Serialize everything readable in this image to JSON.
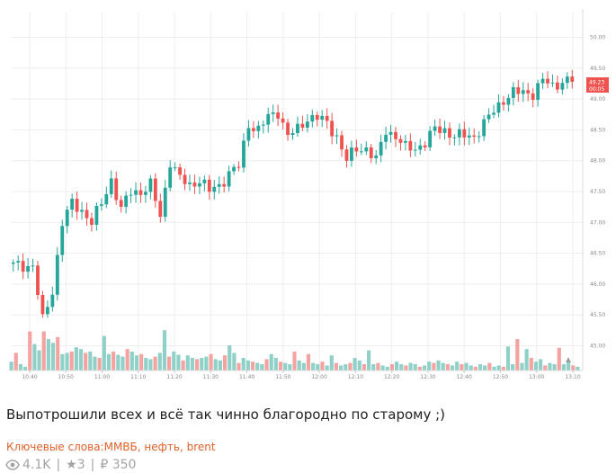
{
  "post": {
    "text": "Выпотрошили всех и всё так чинно благородно по старому ;)",
    "keywords_label": "Ключевые слова:",
    "keywords": "ММВБ, нефть, brent",
    "views": "4.1K",
    "rating": "★3",
    "price": "₽ 350",
    "separator": "|"
  },
  "colors": {
    "up": "#26a69a",
    "down": "#ef5350",
    "up_volume": "#8fd1c8",
    "down_volume": "#f4a3a1",
    "grid": "#eeeeee"
  },
  "chart_data": {
    "type": "candlestick",
    "x_ticks": [
      "10:40",
      "10:50",
      "11:00",
      "11:10",
      "11:20",
      "11:30",
      "11:40",
      "11:50",
      "12:00",
      "12:10",
      "12:20",
      "12:30",
      "12:40",
      "12:50",
      "13:00",
      "13:10"
    ],
    "y_ticks": [
      "50.00",
      "49.50",
      "49.00",
      "48.50",
      "48.00",
      "47.50",
      "47.00",
      "46.50",
      "46.00",
      "45.50",
      "45.00"
    ],
    "ylim": [
      44.6,
      50.4
    ],
    "last_price": "49.23",
    "countdown": "00:05",
    "close_path": [
      [
        0,
        46.3
      ],
      [
        4,
        46.3
      ],
      [
        6,
        45.4
      ],
      [
        8,
        45.9
      ],
      [
        10,
        47.0
      ],
      [
        12,
        47.3
      ],
      [
        14,
        47.2
      ],
      [
        16,
        47.0
      ],
      [
        18,
        47.3
      ],
      [
        20,
        47.7
      ],
      [
        22,
        47.2
      ],
      [
        24,
        47.5
      ],
      [
        26,
        47.5
      ],
      [
        28,
        47.6
      ],
      [
        30,
        47.1
      ],
      [
        32,
        48.0
      ],
      [
        34,
        47.7
      ],
      [
        36,
        47.6
      ],
      [
        38,
        47.7
      ],
      [
        40,
        47.5
      ],
      [
        42,
        47.6
      ],
      [
        44,
        47.8
      ],
      [
        46,
        47.9
      ],
      [
        48,
        48.6
      ],
      [
        50,
        48.5
      ],
      [
        52,
        48.7
      ],
      [
        54,
        48.8
      ],
      [
        56,
        48.4
      ],
      [
        58,
        48.5
      ],
      [
        60,
        48.7
      ],
      [
        62,
        48.7
      ],
      [
        64,
        48.6
      ],
      [
        66,
        48.4
      ],
      [
        68,
        48.0
      ],
      [
        70,
        48.2
      ],
      [
        72,
        48.2
      ],
      [
        74,
        48.0
      ],
      [
        76,
        48.5
      ],
      [
        78,
        48.4
      ],
      [
        80,
        48.2
      ],
      [
        82,
        48.2
      ],
      [
        84,
        48.3
      ],
      [
        86,
        48.5
      ],
      [
        88,
        48.5
      ],
      [
        90,
        48.4
      ],
      [
        92,
        48.4
      ],
      [
        94,
        48.4
      ],
      [
        96,
        48.6
      ],
      [
        98,
        48.8
      ],
      [
        100,
        49.0
      ],
      [
        102,
        49.1
      ],
      [
        104,
        49.1
      ],
      [
        106,
        49.1
      ],
      [
        108,
        49.3
      ],
      [
        110,
        49.2
      ],
      [
        112,
        49.3
      ],
      [
        114,
        49.3
      ]
    ],
    "volume_heights": [
      0.14,
      0.28,
      0.1,
      0.06,
      0.62,
      0.42,
      0.32,
      0.62,
      0.5,
      0.44,
      0.53,
      0.26,
      0.28,
      0.3,
      0.37,
      0.34,
      0.28,
      0.3,
      0.22,
      0.2,
      0.55,
      0.26,
      0.3,
      0.25,
      0.22,
      0.34,
      0.3,
      0.24,
      0.26,
      0.2,
      0.18,
      0.22,
      0.28,
      0.64,
      0.22,
      0.3,
      0.25,
      0.16,
      0.24,
      0.2,
      0.18,
      0.2,
      0.22,
      0.26,
      0.18,
      0.16,
      0.24,
      0.4,
      0.28,
      0.12,
      0.2,
      0.16,
      0.14,
      0.12,
      0.1,
      0.18,
      0.26,
      0.2,
      0.14,
      0.12,
      0.1,
      0.3,
      0.16,
      0.12,
      0.26,
      0.12,
      0.1,
      0.14,
      0.08,
      0.24,
      0.12,
      0.08,
      0.1,
      0.12,
      0.2,
      0.16,
      0.1,
      0.32,
      0.1,
      0.12,
      0.08,
      0.06,
      0.1,
      0.14,
      0.1,
      0.08,
      0.12,
      0.1,
      0.06,
      0.08,
      0.14,
      0.12,
      0.16,
      0.12,
      0.1,
      0.08,
      0.14,
      0.1,
      0.12,
      0.08,
      0.06,
      0.1,
      0.08,
      0.12,
      0.06,
      0.08,
      0.06,
      0.38,
      0.1,
      0.5,
      0.12,
      0.34,
      0.2,
      0.14,
      0.18,
      0.08,
      0.12,
      0.1,
      0.36,
      0.1,
      0.14,
      0.08,
      0.06
    ]
  }
}
